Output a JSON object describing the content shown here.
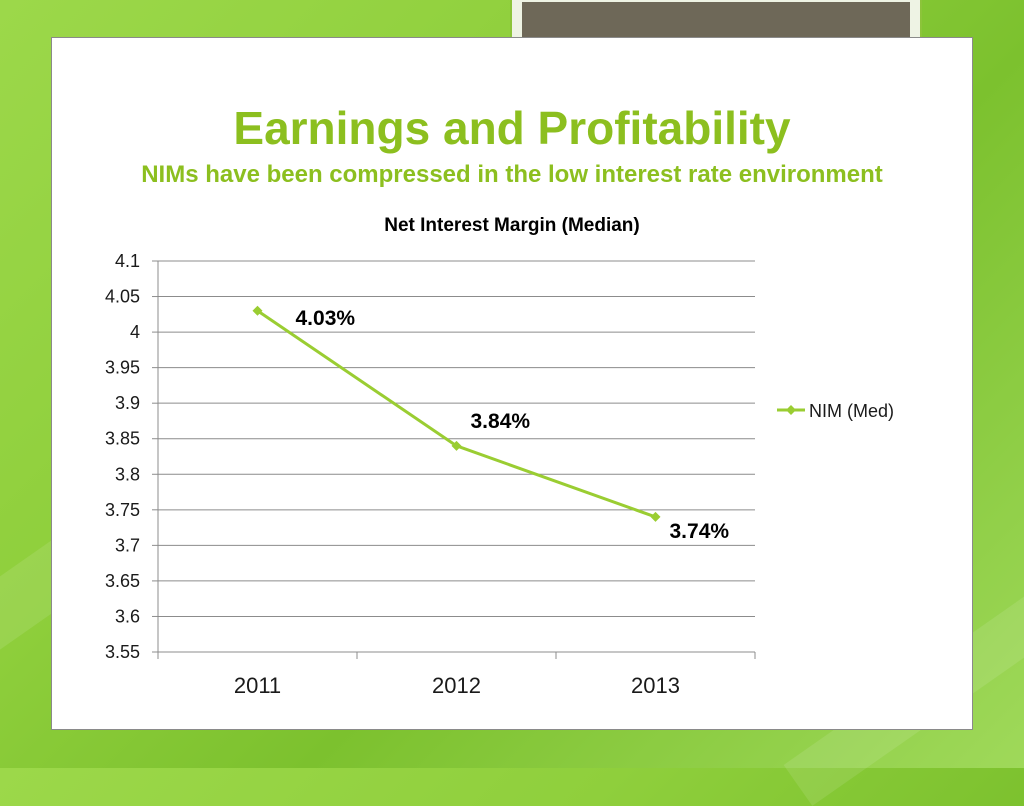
{
  "slide": {
    "title": "Earnings and Profitability",
    "subtitle": "NIMs have been compressed in the low interest rate environment"
  },
  "colors": {
    "accent": "#8cbf1f",
    "series": "#9acd32",
    "tab_fill": "#6e6858"
  },
  "chart_data": {
    "type": "line",
    "title": "Net Interest Margin (Median)",
    "xlabel": "",
    "ylabel": "",
    "categories": [
      "2011",
      "2012",
      "2013"
    ],
    "series": [
      {
        "name": "NIM (Med)",
        "values": [
          4.03,
          3.84,
          3.74
        ],
        "data_labels": [
          "4.03%",
          "3.84%",
          "3.74%"
        ]
      }
    ],
    "ylim": [
      3.55,
      4.1
    ],
    "yticks": [
      "4.1",
      "4.05",
      "4",
      "3.95",
      "3.9",
      "3.85",
      "3.8",
      "3.75",
      "3.7",
      "3.65",
      "3.6",
      "3.55"
    ],
    "grid": true,
    "legend": "right"
  }
}
